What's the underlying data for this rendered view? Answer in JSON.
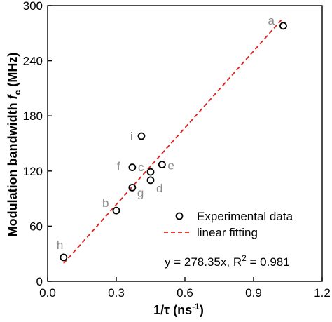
{
  "chart_data": {
    "type": "scatter",
    "xlabel_main": "1/τ (ns",
    "xlabel_sup": "-1",
    "xlabel_end": ")",
    "ylabel_main": "Modulation bandwidth ",
    "ylabel_ital": "f",
    "ylabel_sub": "c",
    "ylabel_end": " (MHz)",
    "xlim": [
      0.0,
      1.2
    ],
    "ylim": [
      0,
      300
    ],
    "xticks": [
      "0.0",
      "0.3",
      "0.6",
      "0.9",
      "1.2"
    ],
    "yticks": [
      "0",
      "60",
      "120",
      "180",
      "240",
      "300"
    ],
    "xtick_values": [
      0.0,
      0.3,
      0.6,
      0.9,
      1.2
    ],
    "ytick_values": [
      0,
      60,
      120,
      180,
      240,
      300
    ],
    "points": [
      {
        "label": "a",
        "x": 1.03,
        "y": 278
      },
      {
        "label": "b",
        "x": 0.3,
        "y": 77
      },
      {
        "label": "c",
        "x": 0.45,
        "y": 119
      },
      {
        "label": "d",
        "x": 0.45,
        "y": 110
      },
      {
        "label": "e",
        "x": 0.5,
        "y": 127
      },
      {
        "label": "f",
        "x": 0.37,
        "y": 124
      },
      {
        "label": "g",
        "x": 0.37,
        "y": 102
      },
      {
        "label": "h",
        "x": 0.07,
        "y": 26
      },
      {
        "label": "i",
        "x": 0.41,
        "y": 158
      }
    ],
    "fit": {
      "x": [
        0.07,
        1.03
      ],
      "slope": 278.35
    },
    "legend": {
      "position": "bottom-right",
      "series_points": "Experimental data",
      "series_fit": "linear fitting"
    },
    "equation_main": "y = 278.35x, R",
    "equation_sup": "2",
    "equation_end": " = 0.981",
    "colors": {
      "fit": "#e0201b",
      "points": "#000000",
      "point_labels": "#8a8a8a"
    }
  }
}
